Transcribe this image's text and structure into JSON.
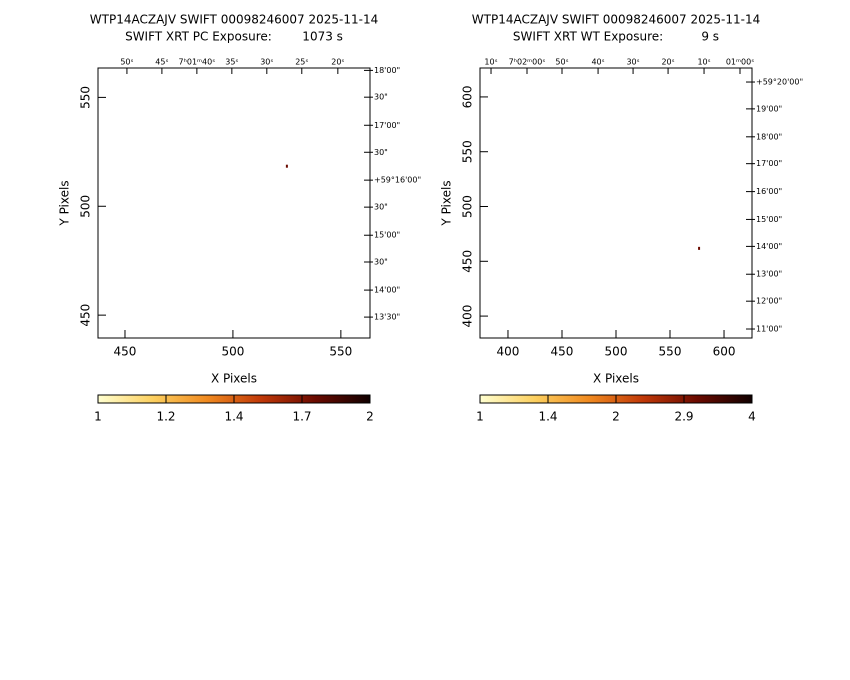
{
  "chart_data": [
    {
      "type": "image",
      "title": "WTP14ACZAJV SWIFT 00098246007 2025-11-14",
      "subtitle": "SWIFT XRT PC Exposure:        1073 s",
      "xlabel": "X Pixels",
      "ylabel": "Y Pixels",
      "xlim": [
        437.5,
        563.5
      ],
      "ylim": [
        439.5,
        563.5
      ],
      "xticks": [
        450,
        500,
        550
      ],
      "yticks": [
        450,
        500,
        550
      ],
      "top_ticks": [
        {
          "value": 450.9,
          "label": "50ˢ"
        },
        {
          "value": 467.1,
          "label": "45ˢ"
        },
        {
          "value": 483.3,
          "label": "7ʰ01ᵐ40ˢ"
        },
        {
          "value": 499.5,
          "label": "35ˢ"
        },
        {
          "value": 515.7,
          "label": "30ˢ"
        },
        {
          "value": 531.9,
          "label": "25ˢ"
        },
        {
          "value": 548.6,
          "label": "20ˢ"
        }
      ],
      "right_ticks": [
        {
          "value": 562.4,
          "label": "18'00\""
        },
        {
          "value": 550.1,
          "label": "30\""
        },
        {
          "value": 537.2,
          "label": "17'00\""
        },
        {
          "value": 524.8,
          "label": "30\""
        },
        {
          "value": 512.0,
          "label": "+59°16'00\""
        },
        {
          "value": 499.6,
          "label": "30\""
        },
        {
          "value": 486.7,
          "label": "15'00\""
        },
        {
          "value": 474.4,
          "label": "30\""
        },
        {
          "value": 461.5,
          "label": "14'00\""
        },
        {
          "value": 449.1,
          "label": "13'30\""
        }
      ],
      "x": [
        525
      ],
      "y": [
        518.4
      ],
      "colorbar_ticks": [
        1,
        1.2,
        1.4,
        1.7,
        2
      ],
      "colormap": [
        "#ffffd0",
        "#fcd060",
        "#f08a20",
        "#c03808",
        "#6a0a00",
        "#100000"
      ]
    },
    {
      "type": "image",
      "title": "WTP14ACZAJV SWIFT 00098246007 2025-11-14",
      "subtitle": "SWIFT XRT WT Exposure:          9 s",
      "xlabel": "X Pixels",
      "ylabel": "Y Pixels",
      "xlim": [
        374.1,
        625.9
      ],
      "ylim": [
        380,
        626.4
      ],
      "xticks": [
        400,
        450,
        500,
        550,
        600
      ],
      "yticks": [
        400,
        450,
        500,
        550,
        600
      ],
      "top_ticks": [
        {
          "value": 384.3,
          "label": "10ˢ"
        },
        {
          "value": 417.6,
          "label": "7ʰ02ᵐ00ˢ"
        },
        {
          "value": 450.0,
          "label": "50ˢ"
        },
        {
          "value": 483.4,
          "label": "40ˢ"
        },
        {
          "value": 515.8,
          "label": "30ˢ"
        },
        {
          "value": 548.2,
          "label": "20ˢ"
        },
        {
          "value": 581.5,
          "label": "10ˢ"
        },
        {
          "value": 614.8,
          "label": "01ᵐ00ˢ"
        }
      ],
      "right_ticks": [
        {
          "value": 613.6,
          "label": "+59°20'00\""
        },
        {
          "value": 589.1,
          "label": "19'00\""
        },
        {
          "value": 563.6,
          "label": "18'00\""
        },
        {
          "value": 539.1,
          "label": "17'00\""
        },
        {
          "value": 513.6,
          "label": "16'00\""
        },
        {
          "value": 488.2,
          "label": "15'00\""
        },
        {
          "value": 463.6,
          "label": "14'00\""
        },
        {
          "value": 438.2,
          "label": "13'00\""
        },
        {
          "value": 413.6,
          "label": "12'00\""
        },
        {
          "value": 388.2,
          "label": "11'00\""
        }
      ],
      "x": [
        576.9
      ],
      "y": [
        461.8
      ],
      "colorbar_ticks": [
        1,
        1.4,
        2,
        2.9,
        4
      ],
      "colormap": [
        "#ffffd0",
        "#fcd060",
        "#f08a20",
        "#c03808",
        "#6a0a00",
        "#100000"
      ]
    }
  ]
}
